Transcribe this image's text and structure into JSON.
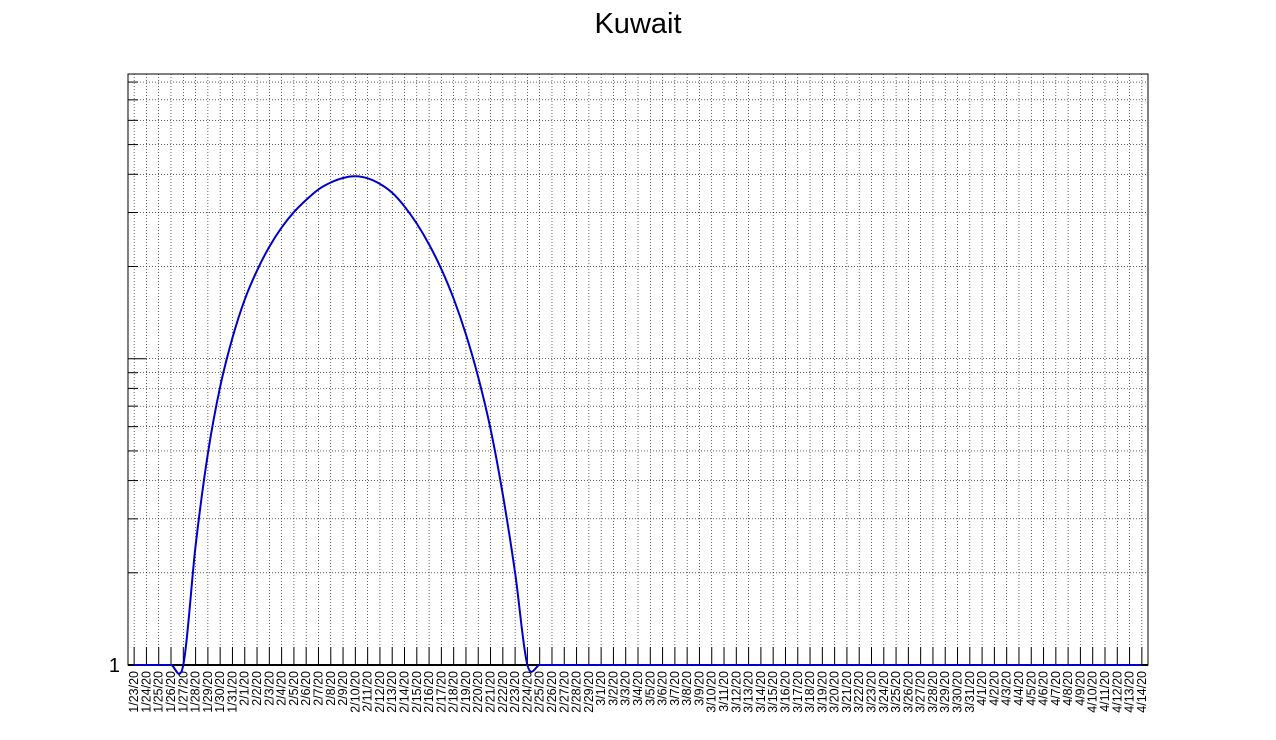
{
  "chart_data": {
    "type": "line",
    "title": "Kuwait",
    "xlabel": "",
    "ylabel": "",
    "y_scale": "log",
    "y_tick_labels": [
      "1"
    ],
    "grid": true,
    "x": [
      "1/23/20",
      "1/24/20",
      "1/25/20",
      "1/26/20",
      "1/27/20",
      "1/28/20",
      "1/29/20",
      "1/30/20",
      "1/31/20",
      "2/1/20",
      "2/2/20",
      "2/3/20",
      "2/4/20",
      "2/5/20",
      "2/6/20",
      "2/7/20",
      "2/8/20",
      "2/9/20",
      "2/10/20",
      "2/11/20",
      "2/12/20",
      "2/13/20",
      "2/14/20",
      "2/15/20",
      "2/16/20",
      "2/17/20",
      "2/18/20",
      "2/19/20",
      "2/20/20",
      "2/21/20",
      "2/22/20",
      "2/23/20",
      "2/24/20",
      "2/25/20",
      "2/26/20",
      "2/27/20",
      "2/28/20",
      "2/29/20",
      "3/1/20",
      "3/2/20",
      "3/3/20",
      "3/4/20",
      "3/5/20",
      "3/6/20",
      "3/7/20",
      "3/8/20",
      "3/9/20",
      "3/10/20",
      "3/11/20",
      "3/12/20",
      "3/13/20",
      "3/14/20",
      "3/15/20",
      "3/16/20",
      "3/17/20",
      "3/18/20",
      "3/19/20",
      "3/20/20",
      "3/21/20",
      "3/22/20",
      "3/23/20",
      "3/24/20",
      "3/25/20",
      "3/26/20",
      "3/27/20",
      "3/28/20",
      "3/29/20",
      "3/30/20",
      "3/31/20",
      "4/1/20",
      "4/2/20",
      "4/3/20",
      "4/4/20",
      "4/5/20",
      "4/6/20",
      "4/7/20",
      "4/8/20",
      "4/9/20",
      "4/10/20",
      "4/11/20",
      "4/12/20",
      "4/13/20",
      "4/14/20"
    ],
    "series": [
      {
        "color": "#0000cc",
        "values": [
          1,
          1,
          1,
          1,
          1,
          2.45,
          4.9,
          8.1,
          11.7,
          15.6,
          19.4,
          23.2,
          26.8,
          30.1,
          33.0,
          35.7,
          37.6,
          38.9,
          39.4,
          38.8,
          37.2,
          34.8,
          31.4,
          27.6,
          23.6,
          19.6,
          15.7,
          12.0,
          8.7,
          5.9,
          3.6,
          2.0,
          1,
          1,
          1,
          1,
          1,
          1,
          1,
          1,
          1,
          1,
          1,
          1,
          1,
          1,
          1,
          1,
          1,
          1,
          1,
          1,
          1,
          1,
          1,
          1,
          1,
          1,
          1,
          1,
          1,
          1,
          1,
          1,
          1,
          1,
          1,
          1,
          1,
          1,
          1,
          1,
          1,
          1,
          1,
          1,
          1,
          1,
          1,
          1,
          1,
          1,
          1
        ]
      }
    ]
  }
}
